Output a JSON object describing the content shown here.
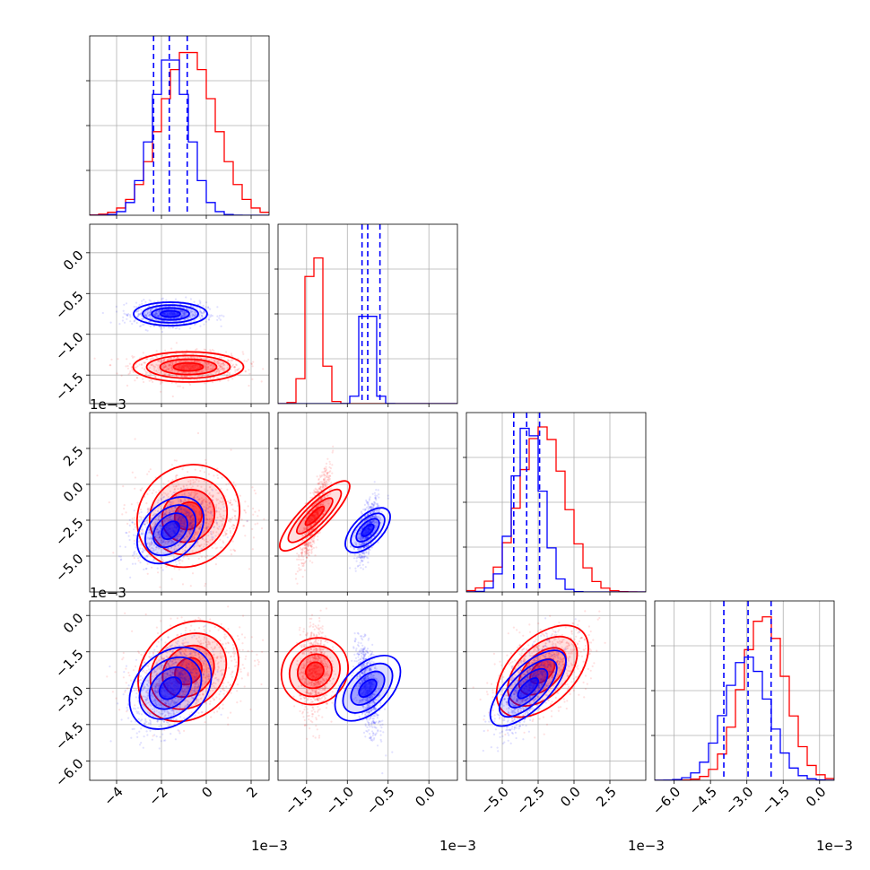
{
  "chart_data": {
    "type": "corner",
    "title": "",
    "colors": {
      "red": "#ff0000",
      "blue": "#0000ff"
    },
    "grid": true,
    "offset_label": "1e−3",
    "parameters": [
      {
        "index": 0,
        "range": [
          -5.2,
          2.8
        ],
        "ticks": [
          -4,
          -2,
          0,
          2
        ],
        "tick_labels": [
          "−4",
          "−2",
          "0",
          "2"
        ]
      },
      {
        "index": 1,
        "range": [
          -1.85,
          0.35
        ],
        "ticks": [
          -1.5,
          -1.0,
          -0.5,
          0.0
        ],
        "tick_labels": [
          "−1.5",
          "−1.0",
          "−0.5",
          "0.0"
        ]
      },
      {
        "index": 2,
        "range": [
          -7.5,
          5.0
        ],
        "ticks": [
          -5.0,
          -2.5,
          0.0,
          2.5
        ],
        "tick_labels": [
          "−5.0",
          "−2.5",
          "0.0",
          "2.5"
        ]
      },
      {
        "index": 3,
        "range": [
          -6.8,
          0.6
        ],
        "ticks": [
          -6.0,
          -4.5,
          -3.0,
          -1.5,
          0.0
        ],
        "tick_labels": [
          "−6.0",
          "−4.5",
          "−3.0",
          "−1.5",
          "0.0"
        ]
      }
    ],
    "series": [
      {
        "name": "",
        "color": "#ff0000",
        "mean": [
          -0.8,
          -1.4,
          -2.2,
          -2.3
        ],
        "sd": [
          1.2,
          0.09,
          1.6,
          0.9
        ],
        "hist_peak": [
          1.0,
          1.0,
          1.0,
          1.0
        ]
      },
      {
        "name": "",
        "color": "#0000ff",
        "mean": [
          -1.6,
          -0.75,
          -3.2,
          -3.0
        ],
        "sd": [
          0.8,
          0.07,
          1.0,
          0.9
        ],
        "hist_peak": [
          0.97,
          0.72,
          1.02,
          0.75
        ],
        "quantiles": [
          [
            -2.35,
            -1.65,
            -0.85
          ],
          [
            -0.82,
            -0.75,
            -0.6
          ],
          [
            -4.2,
            -3.3,
            -2.4
          ],
          [
            -3.95,
            -2.95,
            -2.0
          ]
        ]
      }
    ],
    "correlations": {
      "red": {
        "0-1": 0.0,
        "0-2": 0.1,
        "0-3": 0.2,
        "1-2": 0.85,
        "1-3": 0.1,
        "2-3": 0.5
      },
      "blue": {
        "0-1": 0.0,
        "0-2": 0.35,
        "0-3": 0.3,
        "1-2": 0.6,
        "1-3": -0.5,
        "2-3": 0.7
      }
    }
  }
}
